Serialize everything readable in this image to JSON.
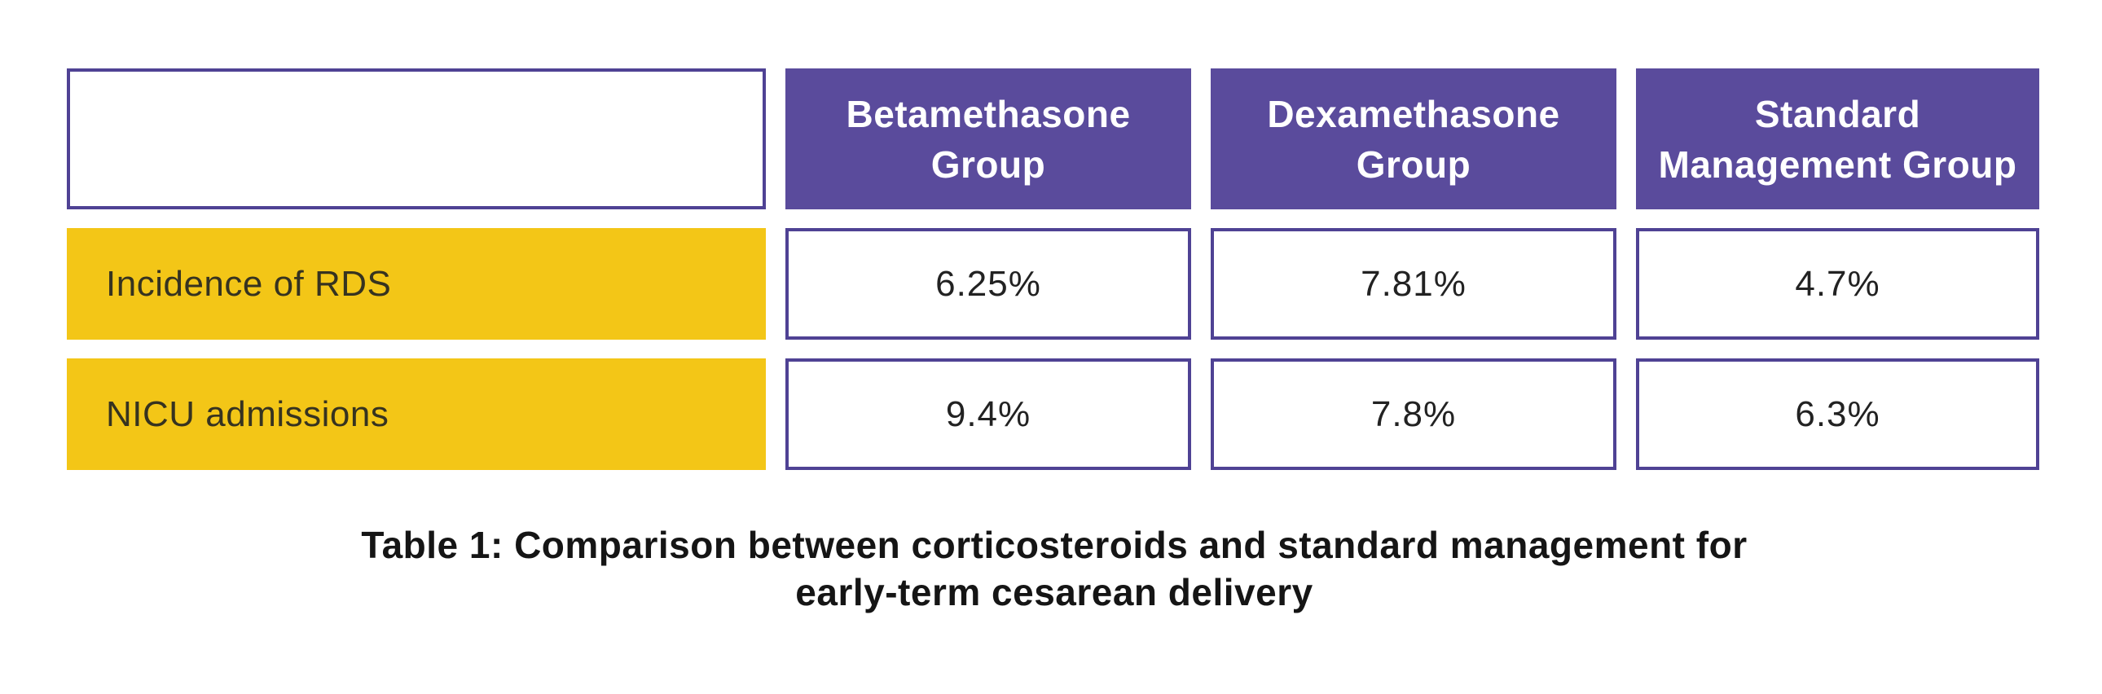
{
  "chart_data": {
    "type": "table",
    "title": "Table 1: Comparison between corticosteroids and standard management for early-term cesarean delivery",
    "columns": [
      "",
      "Betamethasone Group",
      "Dexamethasone Group",
      "Standard Management Group"
    ],
    "rows": [
      {
        "label": "Incidence of RDS",
        "values": [
          "6.25%",
          "7.81%",
          "4.7%"
        ],
        "values_numeric_pct": [
          6.25,
          7.81,
          4.7
        ]
      },
      {
        "label": "NICU admissions",
        "values": [
          "9.4%",
          "7.8%",
          "6.3%"
        ],
        "values_numeric_pct": [
          9.4,
          7.8,
          6.3
        ]
      }
    ],
    "layout_hints": {
      "style": "separated cells with gaps",
      "header_fill": "#5A4B9C",
      "row_label_fill": "#F3C617",
      "value_cell_border": "#4F4294",
      "caption_position": "bottom-center"
    }
  },
  "table": {
    "corner_label": "",
    "headers": [
      "Betamethasone\nGroup",
      "Dexamethasone\nGroup",
      "Standard\nManagement Group"
    ],
    "rows": [
      {
        "label": "Incidence of RDS",
        "values": [
          "6.25%",
          "7.81%",
          "4.7%"
        ]
      },
      {
        "label": "NICU admissions",
        "values": [
          "9.4%",
          "7.8%",
          "6.3%"
        ]
      }
    ]
  },
  "caption": {
    "line1": "Table 1: Comparison between corticosteroids and standard management for",
    "line2": "early-term cesarean delivery"
  },
  "colors": {
    "header_purple": "#5A4B9C",
    "border_purple": "#4F4294",
    "row_yellow": "#F3C617",
    "label_text": "#363320",
    "value_text": "#222222",
    "caption_text": "#151515",
    "background": "#FFFFFF"
  }
}
